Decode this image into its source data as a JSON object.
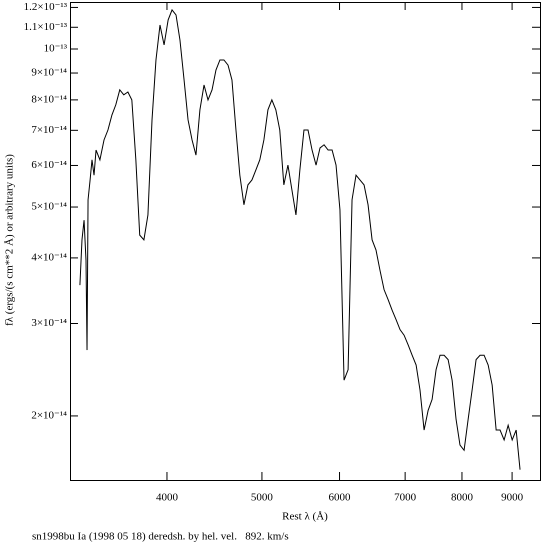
{
  "chart_data": {
    "type": "line",
    "xlabel": "Rest λ (Å)",
    "ylabel": "fλ (ergs/(s cm**2 Å) or arbitrary units)",
    "caption": "sn1998bu Ia (1998 05 18) deredsh. by hel. vel.   892. km/s",
    "xlog": true,
    "ylog": true,
    "color": "#000000",
    "xlim": [
      3185,
      9610
    ],
    "ylim": [
      1.51e-14,
      1.229e-13
    ],
    "xticks": [
      4000,
      5000,
      6000,
      7000,
      8000,
      9000
    ],
    "yticks": [
      {
        "value": 2e-14,
        "label": "2×10⁻¹⁴"
      },
      {
        "value": 3e-14,
        "label": "3×10⁻¹⁴"
      },
      {
        "value": 4e-14,
        "label": "4×10⁻¹⁴"
      },
      {
        "value": 5e-14,
        "label": "5×10⁻¹⁴"
      },
      {
        "value": 6e-14,
        "label": "6×10⁻¹⁴"
      },
      {
        "value": 7e-14,
        "label": "7×10⁻¹⁴"
      },
      {
        "value": 8e-14,
        "label": "8×10⁻¹⁴"
      },
      {
        "value": 9e-14,
        "label": "9×10⁻¹⁴"
      },
      {
        "value": 1e-13,
        "label": "10⁻¹³"
      },
      {
        "value": 1.1e-13,
        "label": "1.1×10⁻¹³"
      },
      {
        "value": 1.2e-13,
        "label": "1.2×10⁻¹³"
      }
    ],
    "x": [
      3260,
      3276,
      3292,
      3307,
      3315,
      3323,
      3339,
      3354,
      3370,
      3386,
      3417,
      3450,
      3482,
      3515,
      3547,
      3580,
      3614,
      3649,
      3683,
      3718,
      3752,
      3789,
      3825,
      3862,
      3898,
      3935,
      3973,
      4011,
      4048,
      4086,
      4124,
      4164,
      4203,
      4243,
      4282,
      4322,
      4364,
      4405,
      4447,
      4488,
      4530,
      4573,
      4617,
      4660,
      4704,
      4747,
      4793,
      4838,
      4884,
      4929,
      4975,
      5023,
      5071,
      5118,
      5166,
      5214,
      5264,
      5315,
      5365,
      5416,
      5466,
      5519,
      5572,
      5625,
      5678,
      5731,
      5786,
      5841,
      5896,
      5951,
      6006,
      6064,
      6122,
      6179,
      6237,
      6295,
      6356,
      6416,
      6477,
      6537,
      6598,
      6662,
      6726,
      6789,
      6853,
      6917,
      6983,
      7050,
      7116,
      7183,
      7249,
      7319,
      7389,
      7458,
      7528,
      7598,
      7671,
      7744,
      7817,
      7890,
      7963,
      8040,
      8117,
      8193,
      8270,
      8347,
      8427,
      8508,
      8588,
      8669,
      8749,
      8833,
      8917,
      9002,
      9086,
      9170
    ],
    "values": [
      3.55e-14,
      4.33e-14,
      4.72e-14,
      3.96e-14,
      2.67e-14,
      5.16e-14,
      5.63e-14,
      6.15e-14,
      5.75e-14,
      6.42e-14,
      6.15e-14,
      6.71e-14,
      7.01e-14,
      7.49e-14,
      7.83e-14,
      8.36e-14,
      8.18e-14,
      8.28e-14,
      8e-14,
      6.15e-14,
      4.42e-14,
      4.33e-14,
      4.83e-14,
      7.33e-14,
      9.53e-14,
      1.111e-13,
      1.018e-13,
      1.136e-13,
      1.187e-13,
      1.161e-13,
      1.04e-13,
      8.73e-14,
      7.33e-14,
      6.71e-14,
      6.28e-14,
      7.66e-14,
      8.54e-14,
      8e-14,
      8.36e-14,
      9.12e-14,
      9.53e-14,
      9.53e-14,
      9.32e-14,
      8.73e-14,
      7.01e-14,
      5.75e-14,
      5.05e-14,
      5.51e-14,
      5.63e-14,
      5.88e-14,
      6.15e-14,
      6.71e-14,
      7.66e-14,
      8e-14,
      7.66e-14,
      7.01e-14,
      5.51e-14,
      6.01e-14,
      5.39e-14,
      4.83e-14,
      5.88e-14,
      7.01e-14,
      7.01e-14,
      6.42e-14,
      6.01e-14,
      6.48e-14,
      6.57e-14,
      6.42e-14,
      6.42e-14,
      6.01e-14,
      4.94e-14,
      2.34e-14,
      2.45e-14,
      5.16e-14,
      5.75e-14,
      5.63e-14,
      5.51e-14,
      5.05e-14,
      4.33e-14,
      4.14e-14,
      3.79e-14,
      3.48e-14,
      3.33e-14,
      3.18e-14,
      3.05e-14,
      2.92e-14,
      2.85e-14,
      2.73e-14,
      2.61e-14,
      2.5e-14,
      2.24e-14,
      1.88e-14,
      2.05e-14,
      2.15e-14,
      2.45e-14,
      2.61e-14,
      2.61e-14,
      2.56e-14,
      2.34e-14,
      1.97e-14,
      1.76e-14,
      1.72e-14,
      1.97e-14,
      2.24e-14,
      2.56e-14,
      2.61e-14,
      2.61e-14,
      2.5e-14,
      2.29e-14,
      1.88e-14,
      1.88e-14,
      1.8e-14,
      1.92e-14,
      1.8e-14,
      1.88e-14,
      1.58e-14
    ]
  }
}
